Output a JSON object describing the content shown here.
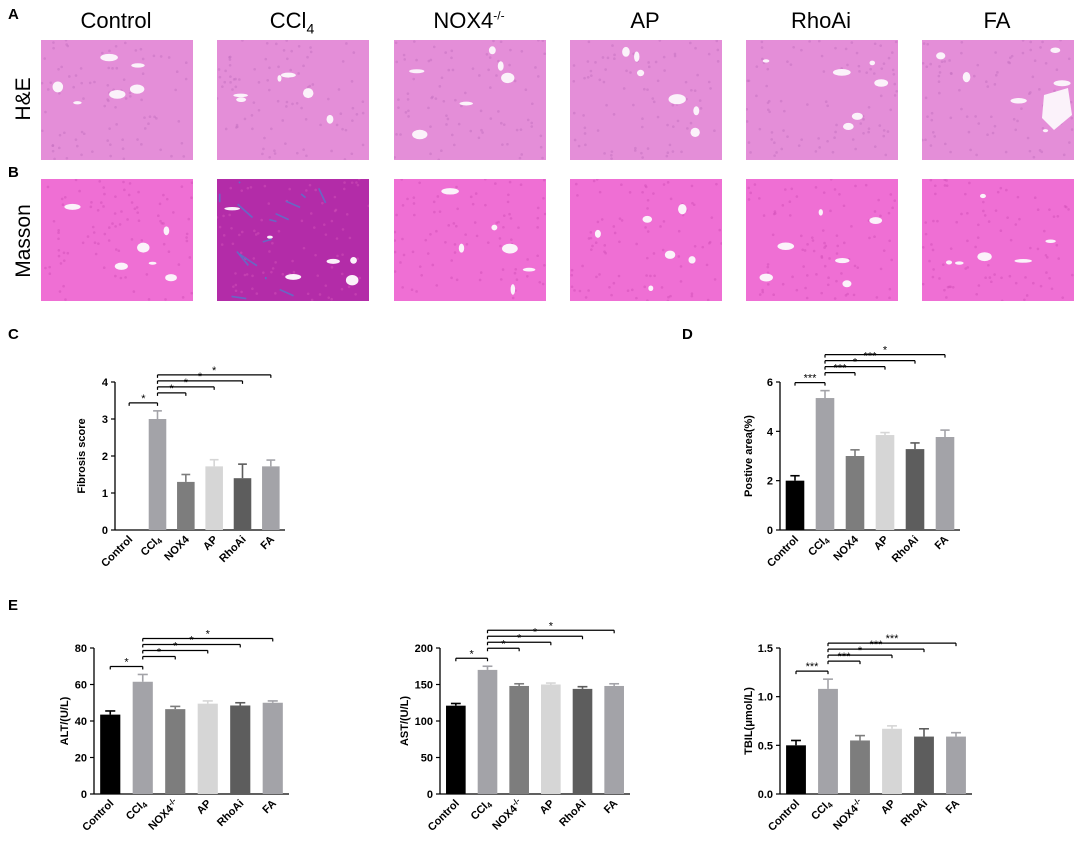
{
  "panel_letters": [
    "A",
    "B",
    "C",
    "D",
    "E"
  ],
  "histology": {
    "columns": [
      "Control",
      "CCl",
      "NOX4",
      "AP",
      "RhoAi",
      "FA"
    ],
    "column_sub": "4",
    "column_sup": "-/-",
    "rows": [
      "H&E",
      "Masson"
    ],
    "colors": {
      "he_bg": "#e48ed8",
      "masson_bg": "#ef6fd4",
      "ccl4_masson": "#b32ca8",
      "fiber": "#5577cc"
    }
  },
  "chart_data": [
    {
      "id": "C",
      "type": "bar",
      "ylabel": "Fibrosis score",
      "ylim": [
        0,
        4
      ],
      "yticks": [
        "0",
        "1",
        "2",
        "3",
        "4"
      ],
      "categories": [
        "Control",
        "CCl4",
        "NOX4",
        "AP",
        "RhoAi",
        "FA"
      ],
      "category_labels": [
        "Control",
        "CCl",
        "NOX4",
        "AP",
        "RhoAi",
        "FA"
      ],
      "values": [
        0,
        3.0,
        1.3,
        1.72,
        1.4,
        1.72
      ],
      "errors": [
        0,
        0.22,
        0.2,
        0.18,
        0.38,
        0.17
      ],
      "colors": [
        "#000000",
        "#a3a3a8",
        "#7d7d7d",
        "#d6d6d6",
        "#5d5d5d",
        "#a3a3a8"
      ],
      "significance": [
        {
          "from": "Control",
          "to": "CCl4",
          "label": "*"
        },
        {
          "from": "CCl4",
          "to": "NOX4",
          "label": "*"
        },
        {
          "from": "CCl4",
          "to": "AP",
          "label": "*"
        },
        {
          "from": "CCl4",
          "to": "RhoAi",
          "label": "*"
        },
        {
          "from": "CCl4",
          "to": "FA",
          "label": "*"
        }
      ]
    },
    {
      "id": "D",
      "type": "bar",
      "ylabel": "Postive area(%)",
      "ylim": [
        0,
        6
      ],
      "yticks": [
        "0",
        "2",
        "4",
        "6"
      ],
      "categories": [
        "Control",
        "CCl4",
        "NOX4",
        "AP",
        "RhoAi",
        "FA"
      ],
      "category_labels": [
        "Control",
        "CCl",
        "NOX4",
        "AP",
        "RhoAi",
        "FA"
      ],
      "values": [
        2.0,
        5.35,
        3.0,
        3.85,
        3.28,
        3.77
      ],
      "errors": [
        0.2,
        0.3,
        0.25,
        0.1,
        0.25,
        0.28
      ],
      "colors": [
        "#000000",
        "#a3a3a8",
        "#7d7d7d",
        "#d6d6d6",
        "#5d5d5d",
        "#a3a3a8"
      ],
      "significance": [
        {
          "from": "Control",
          "to": "CCl4",
          "label": "***"
        },
        {
          "from": "CCl4",
          "to": "NOX4",
          "label": "***"
        },
        {
          "from": "CCl4",
          "to": "AP",
          "label": "*"
        },
        {
          "from": "CCl4",
          "to": "RhoAi",
          "label": "***"
        },
        {
          "from": "CCl4",
          "to": "FA",
          "label": "*"
        }
      ]
    },
    {
      "id": "E1",
      "type": "bar",
      "ylabel": "ALT/(U/L)",
      "ylim": [
        0,
        80
      ],
      "yticks": [
        "0",
        "20",
        "40",
        "60",
        "80"
      ],
      "categories": [
        "Control",
        "CCl4",
        "NOX4-/-",
        "AP",
        "RhoAi",
        "FA"
      ],
      "category_labels": [
        "Control",
        "CCl",
        "NOX4",
        "AP",
        "RhoAi",
        "FA"
      ],
      "values": [
        43.5,
        61.5,
        46.5,
        49.5,
        48.5,
        50.0
      ],
      "errors": [
        2.0,
        4.0,
        1.5,
        1.5,
        1.5,
        1.0
      ],
      "colors": [
        "#000000",
        "#a3a3a8",
        "#7d7d7d",
        "#d6d6d6",
        "#5d5d5d",
        "#a3a3a8"
      ],
      "significance": [
        {
          "from": "Control",
          "to": "CCl4",
          "label": "*"
        },
        {
          "from": "CCl4",
          "to": "NOX4-/-",
          "label": "*"
        },
        {
          "from": "CCl4",
          "to": "AP",
          "label": "*"
        },
        {
          "from": "CCl4",
          "to": "RhoAi",
          "label": "*"
        },
        {
          "from": "CCl4",
          "to": "FA",
          "label": "*"
        }
      ]
    },
    {
      "id": "E2",
      "type": "bar",
      "ylabel": "AST/(U/L)",
      "ylim": [
        0,
        200
      ],
      "yticks": [
        "0",
        "50",
        "100",
        "150",
        "200"
      ],
      "categories": [
        "Control",
        "CCl4",
        "NOX4-/-",
        "AP",
        "RhoAi",
        "FA"
      ],
      "category_labels": [
        "Control",
        "CCl",
        "NOX4",
        "AP",
        "RhoAi",
        "FA"
      ],
      "values": [
        121,
        170,
        148,
        150,
        144,
        148
      ],
      "errors": [
        3,
        5,
        3,
        2,
        3,
        3
      ],
      "colors": [
        "#000000",
        "#a3a3a8",
        "#7d7d7d",
        "#d6d6d6",
        "#5d5d5d",
        "#a3a3a8"
      ],
      "significance": [
        {
          "from": "Control",
          "to": "CCl4",
          "label": "*"
        },
        {
          "from": "CCl4",
          "to": "NOX4-/-",
          "label": "*"
        },
        {
          "from": "CCl4",
          "to": "AP",
          "label": "*"
        },
        {
          "from": "CCl4",
          "to": "RhoAi",
          "label": "*"
        },
        {
          "from": "CCl4",
          "to": "FA",
          "label": "*"
        }
      ]
    },
    {
      "id": "E3",
      "type": "bar",
      "ylabel": "TBIL(μmol/L)",
      "ylim": [
        0,
        1.5
      ],
      "yticks": [
        "0.0",
        "0.5",
        "1.0",
        "1.5"
      ],
      "categories": [
        "Control",
        "CCl4",
        "NOX4-/-",
        "AP",
        "RhoAi",
        "FA"
      ],
      "category_labels": [
        "Control",
        "CCl",
        "NOX4",
        "AP",
        "RhoAi",
        "FA"
      ],
      "values": [
        0.5,
        1.08,
        0.55,
        0.67,
        0.59,
        0.59
      ],
      "errors": [
        0.05,
        0.1,
        0.05,
        0.03,
        0.08,
        0.04
      ],
      "colors": [
        "#000000",
        "#a3a3a8",
        "#7d7d7d",
        "#d6d6d6",
        "#5d5d5d",
        "#a3a3a8"
      ],
      "significance": [
        {
          "from": "Control",
          "to": "CCl4",
          "label": "***"
        },
        {
          "from": "CCl4",
          "to": "NOX4-/-",
          "label": "***"
        },
        {
          "from": "CCl4",
          "to": "AP",
          "label": "*"
        },
        {
          "from": "CCl4",
          "to": "RhoAi",
          "label": "***"
        },
        {
          "from": "CCl4",
          "to": "FA",
          "label": "***"
        }
      ]
    }
  ]
}
